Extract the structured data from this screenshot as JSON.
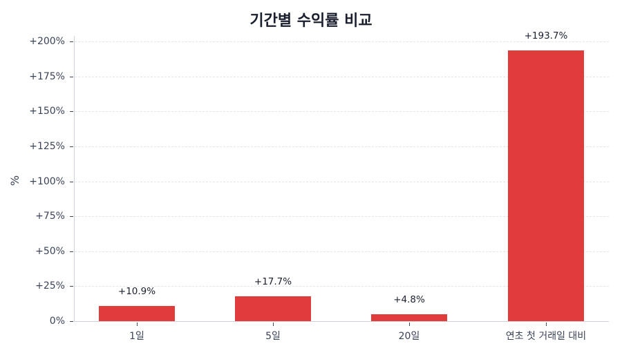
{
  "chart_data": {
    "type": "bar",
    "title": "기간별 수익률 비교",
    "xlabel": "",
    "ylabel": "%",
    "categories": [
      "1일",
      "5일",
      "20일",
      "연초 첫 거래일 대비"
    ],
    "values": [
      10.9,
      17.7,
      4.8,
      193.7
    ],
    "value_labels": [
      "+10.9%",
      "+17.7%",
      "+4.8%",
      "+193.7%"
    ],
    "ylim": [
      0,
      200
    ],
    "yticks": [
      0,
      25,
      50,
      75,
      100,
      125,
      150,
      175,
      200
    ],
    "ytick_labels": [
      "0%",
      "+25%",
      "+50%",
      "+75%",
      "+100%",
      "+125%",
      "+150%",
      "+175%",
      "+200%"
    ],
    "grid": true,
    "grid_style": "dashed horizontal",
    "legend": null,
    "colors": {
      "bar": "#e03c3c",
      "text": "#1a1f2e",
      "axis": "#cdd3dc",
      "grid": "#e2e5ea"
    }
  }
}
